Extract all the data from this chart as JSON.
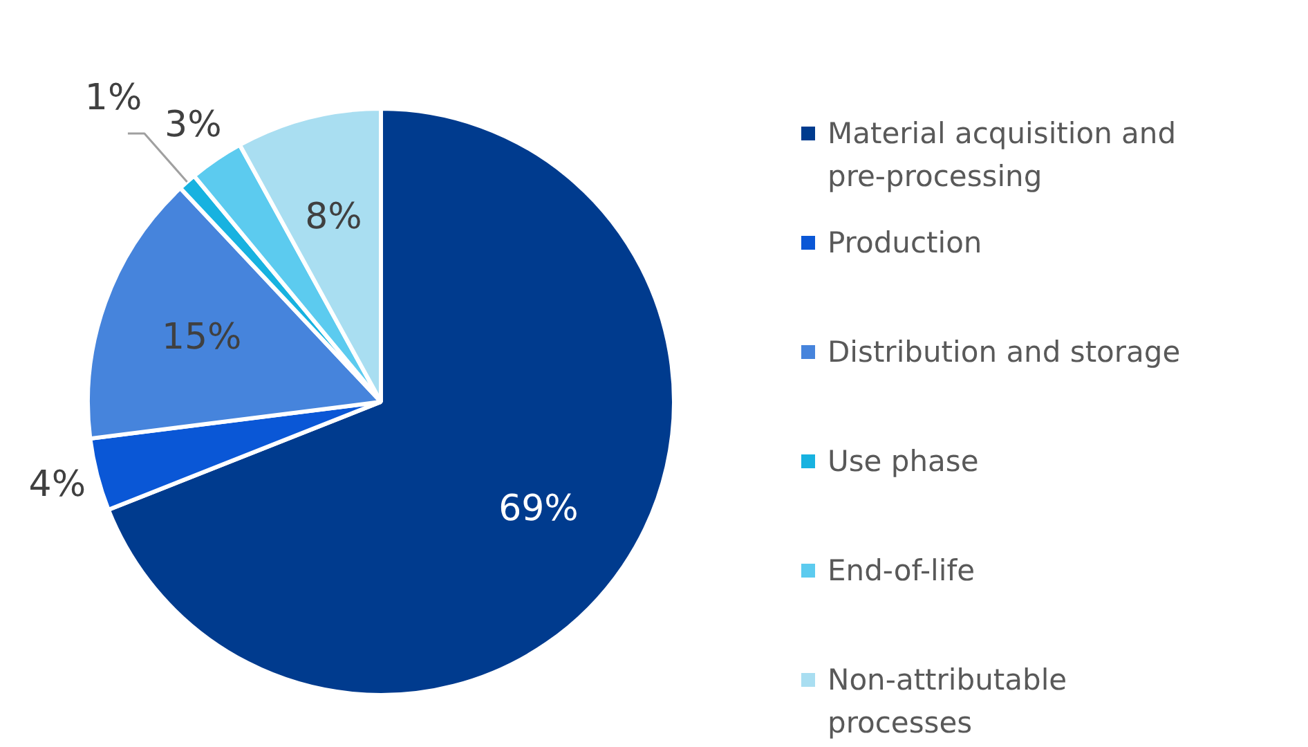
{
  "chart_data": {
    "type": "pie",
    "categories": [
      "Material acquisition and pre-processing",
      "Production",
      "Distribution and storage",
      "Use phase",
      "End-of-life",
      "Non-attributable processes"
    ],
    "values": [
      69,
      4,
      15,
      1,
      3,
      8
    ],
    "colors": [
      "#003b8e",
      "#0a57d6",
      "#4684dc",
      "#17b2e0",
      "#5ccbef",
      "#a9def1"
    ],
    "value_labels": [
      "69%",
      "4%",
      "15%",
      "1%",
      "3%",
      "8%"
    ],
    "legend": "right"
  }
}
